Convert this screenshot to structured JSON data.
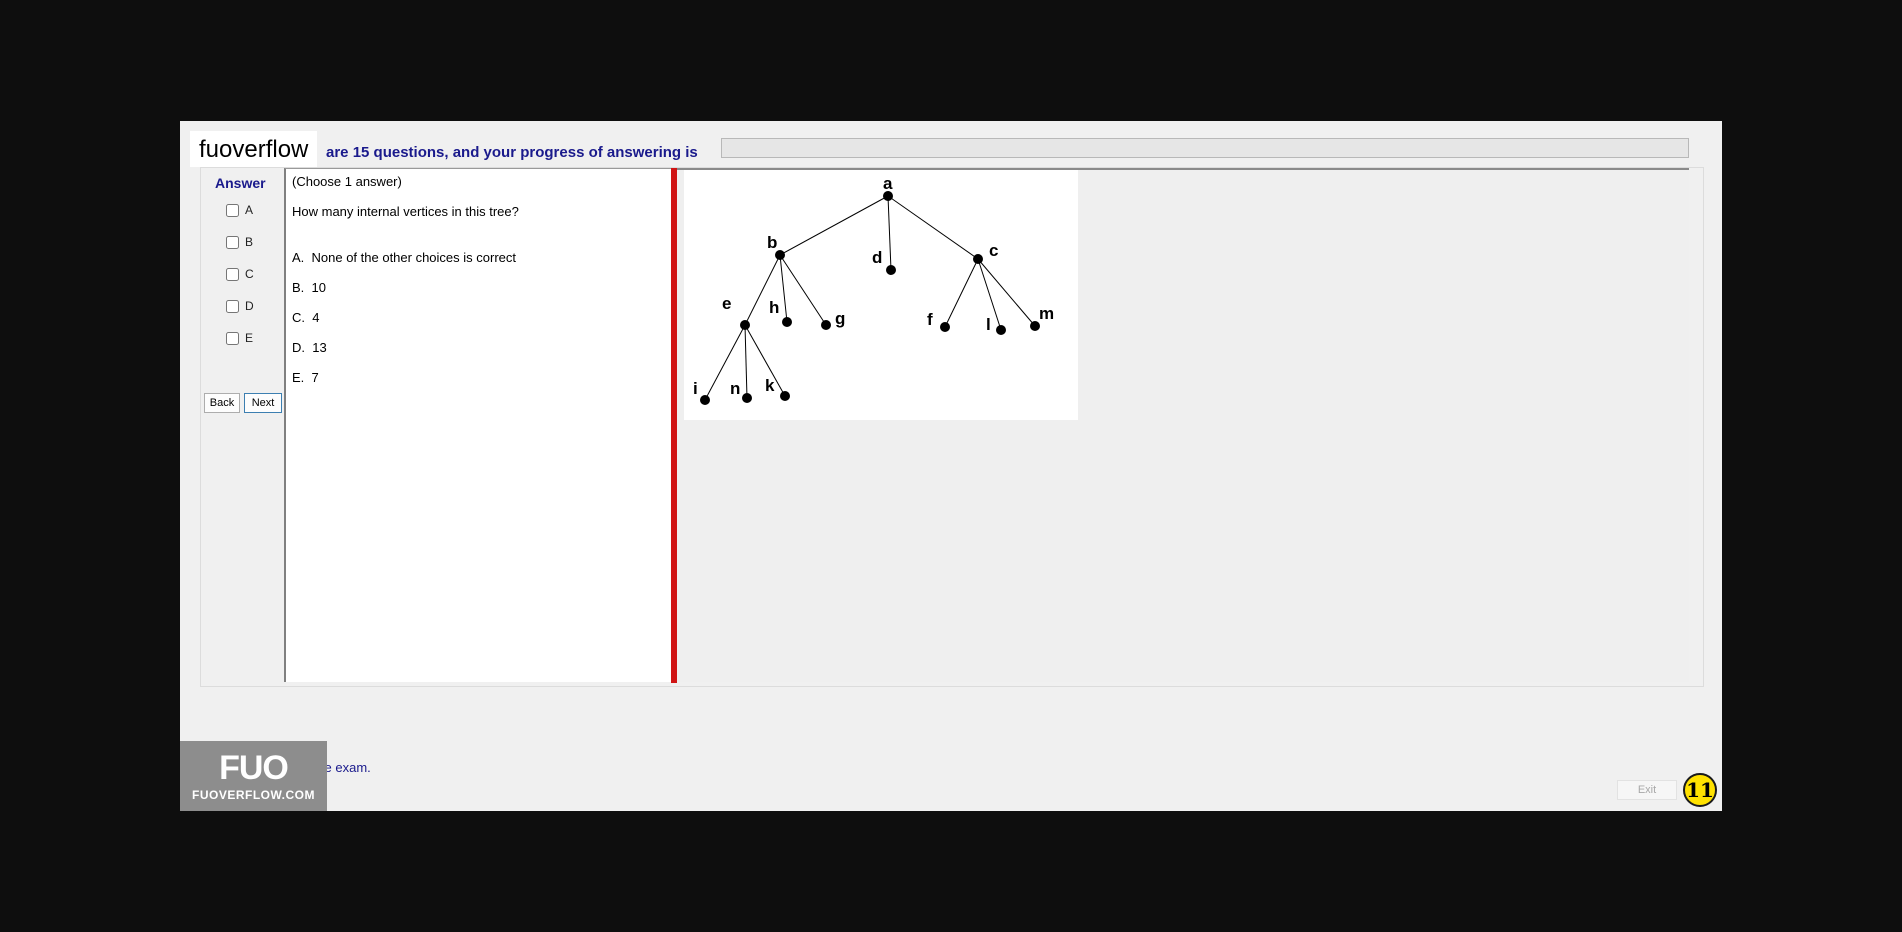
{
  "branding": {
    "watermark": "fuoverflow",
    "logo_big": "FUO",
    "logo_small": "FUOVERFLOW.COM"
  },
  "header": {
    "progress_text": "are 15 questions, and your progress of answering is",
    "progress_fraction": 0
  },
  "answer": {
    "title": "Answer",
    "options": [
      "A",
      "B",
      "C",
      "D",
      "E"
    ]
  },
  "nav": {
    "back": "Back",
    "next": "Next"
  },
  "question": {
    "hint": "(Choose 1 answer)",
    "text": "How many internal vertices in this tree?",
    "choices": [
      "A.  None of the other choices is correct",
      "B.  10",
      "C.  4",
      "D.  13",
      "E.  7"
    ]
  },
  "tree": {
    "labels": {
      "a": "a",
      "b": "b",
      "c": "c",
      "d": "d",
      "e": "e",
      "f": "f",
      "g": "g",
      "h": "h",
      "i": "i",
      "k": "k",
      "l": "l",
      "m": "m",
      "n": "n"
    }
  },
  "footer": {
    "finish_text": "I want to finish the exam.",
    "exit": "Exit",
    "badge": "11"
  },
  "colors": {
    "accent_text": "#1a1a8c",
    "splitter": "#d01414",
    "badge": "#ffe100"
  }
}
